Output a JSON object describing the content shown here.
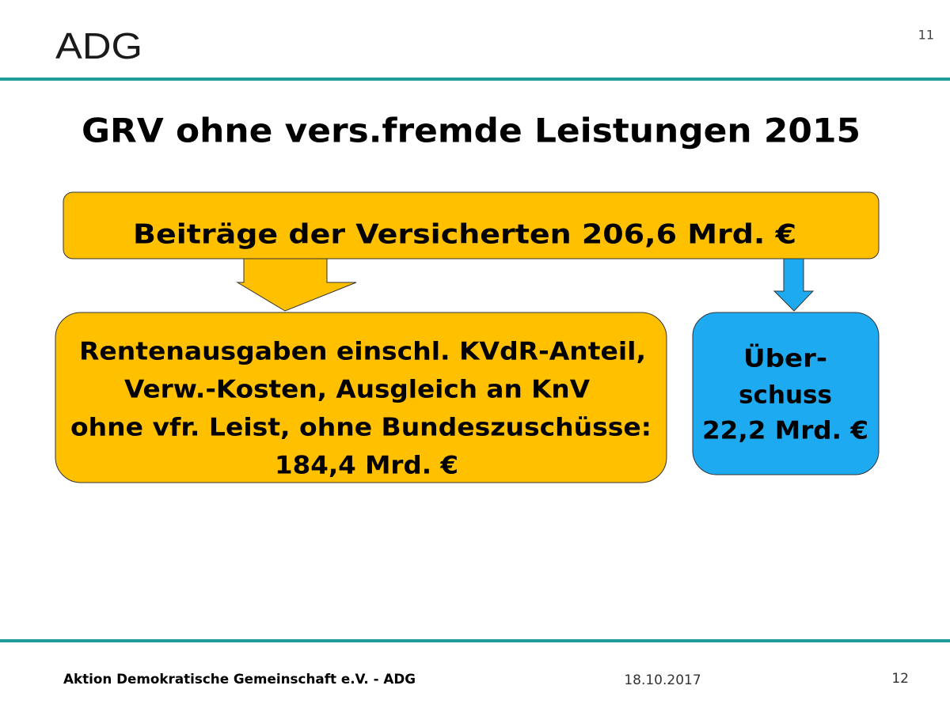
{
  "header": {
    "logo": "ADG",
    "slide_number": "11"
  },
  "title": "GRV ohne vers.fremde Leistungen 2015",
  "nodes": [
    {
      "lines": [
        "Beiträge der Versicherten 206,6 Mrd. €"
      ]
    },
    {
      "lines": [
        "Rentenausgaben einschl. KVdR-Anteil,",
        "Verw.-Kosten, Ausgleich an KnV",
        "ohne vfr. Leist, ohne Bundeszuschüsse:",
        "184,4 Mrd. €"
      ]
    },
    {
      "lines": [
        "Über-",
        "schuss",
        "22,2 Mrd. €"
      ]
    }
  ],
  "footer": {
    "organization": "Aktion Demokratische Gemeinschaft e.V. - ADG",
    "date": "18.10.2017",
    "page": "12"
  }
}
